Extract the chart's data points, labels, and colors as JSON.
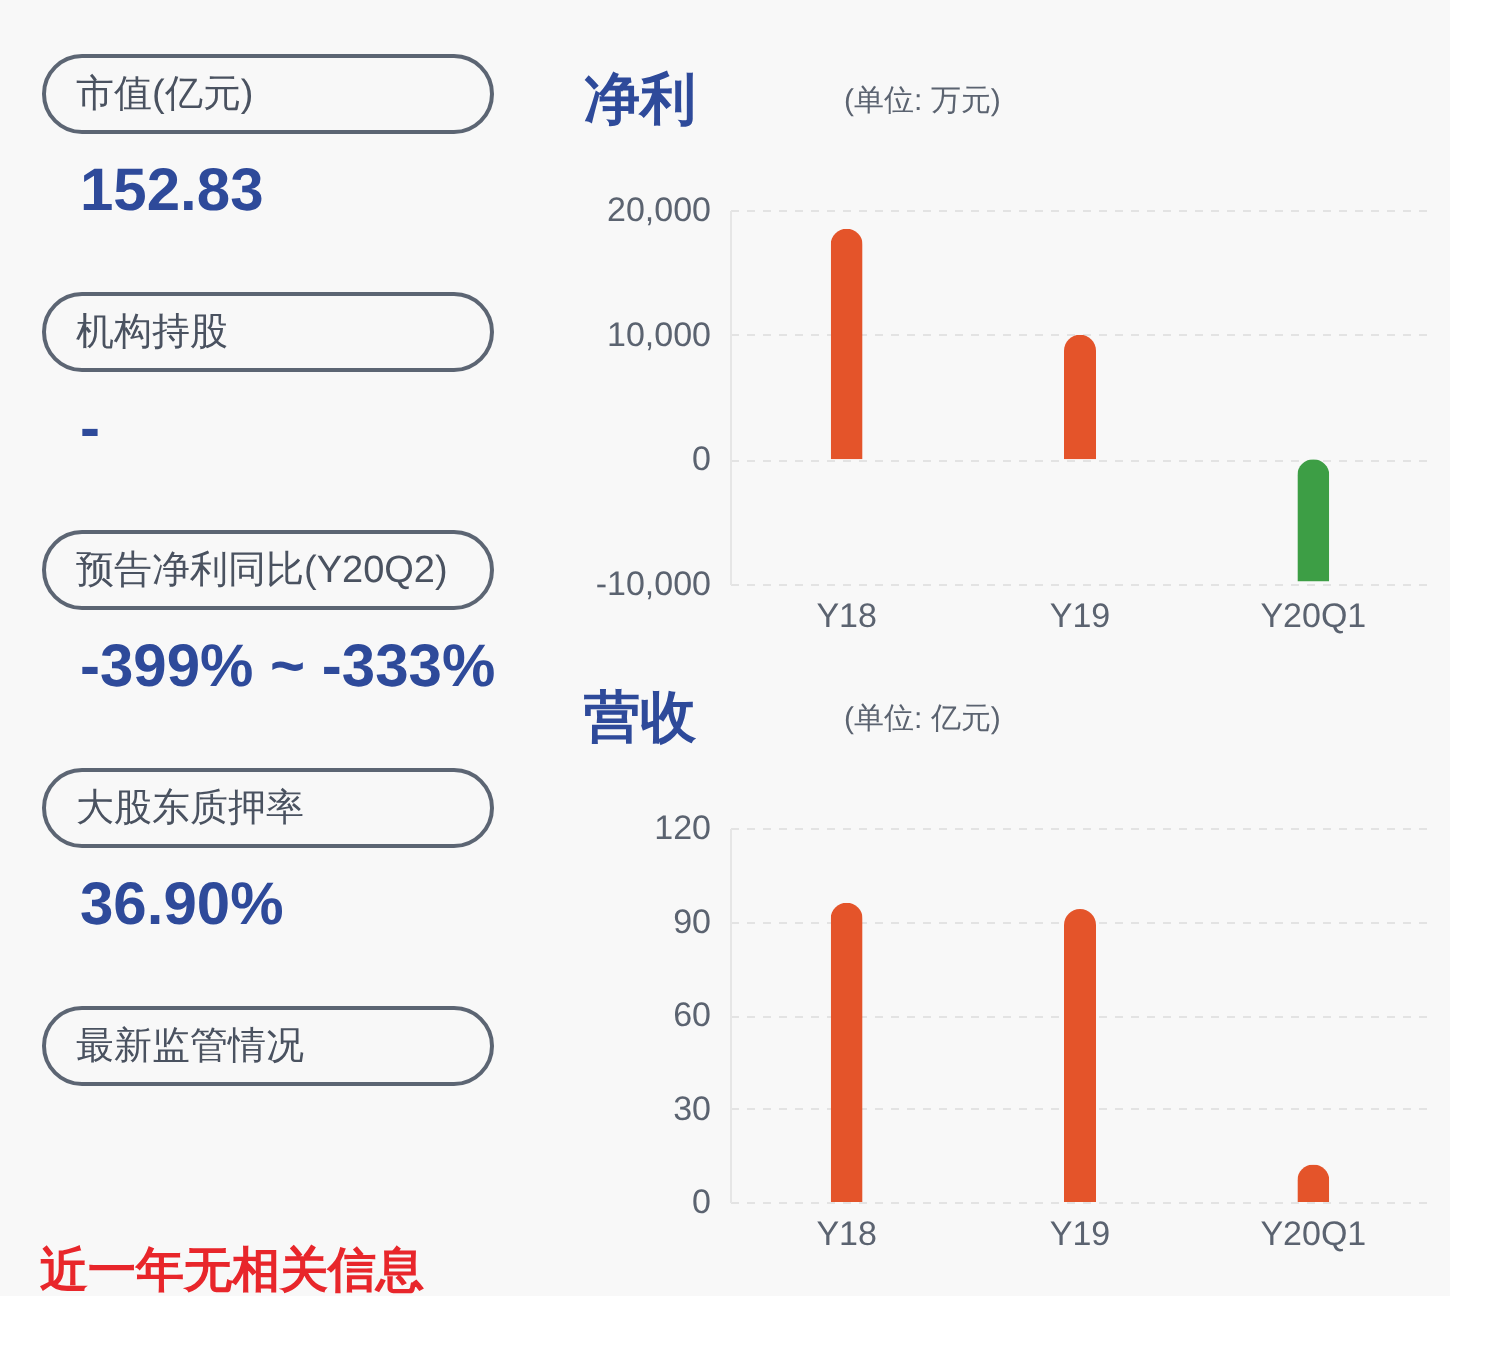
{
  "chart_data": [
    {
      "type": "other",
      "annotations": [
        "市值(亿元)",
        "152.83",
        "机构持股",
        "-",
        "预告净利同比(Y20Q2)",
        "-399% ~ -333%",
        "大股东质押率",
        "36.90%",
        "最新监管情况",
        "近一年无相关信息"
      ]
    },
    {
      "type": "bar",
      "title": "净利",
      "subtitle": "(单位: 万元)",
      "categories": [
        "Y18",
        "Y19",
        "Y20Q1"
      ],
      "values": [
        18500,
        10000,
        -9800
      ],
      "colors": [
        "#e4542a",
        "#e4542a",
        "#3d9e45"
      ],
      "ylim": [
        -10000,
        20000
      ],
      "yticks": [
        {
          "value": -10000,
          "label": "-10,000"
        },
        0,
        {
          "value": 10000,
          "label": "10,000"
        },
        {
          "value": 20000,
          "label": "20,000"
        }
      ],
      "grid": "y"
    },
    {
      "type": "bar",
      "title": "营收",
      "subtitle": "(单位: 亿元)",
      "categories": [
        "Y18",
        "Y19",
        "Y20Q1"
      ],
      "values": [
        96,
        94,
        12
      ],
      "colors": [
        "#e4542a",
        "#e4542a",
        "#e4542a"
      ],
      "ylim": [
        0,
        120
      ],
      "yticks": [
        0,
        30,
        60,
        90,
        120
      ],
      "grid": "y"
    }
  ]
}
